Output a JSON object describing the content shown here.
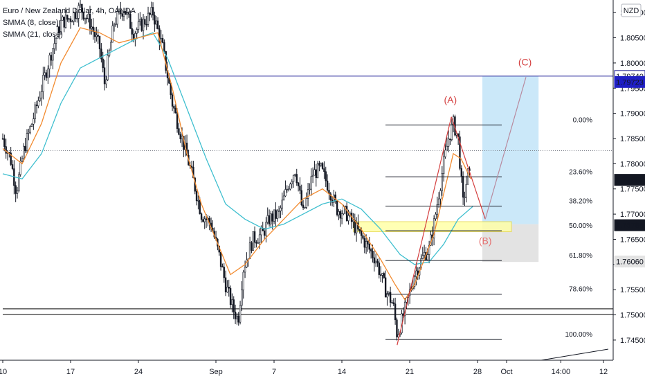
{
  "chart_data": {
    "type": "candlestick",
    "title": "Euro / New Zealand Dollar, 4h, OANDA",
    "indicators": [
      "SMMA (8, close)",
      "SMMA (21, close)"
    ],
    "currency": "NZD",
    "y_ticks": [
      1.745,
      1.75,
      1.755,
      1.76,
      1.765,
      1.77,
      1.775,
      1.78,
      1.785,
      1.79,
      1.795,
      1.8,
      1.805,
      1.81
    ],
    "y_tick_labels": [
      "1.74500",
      "1.75000",
      "1.75500",
      "1.76000",
      "1.76500",
      "1.77000",
      "1.77500",
      "1.78000",
      "1.78500",
      "1.79000",
      "1.79500",
      "1.80000",
      "1.80500",
      "1.81000"
    ],
    "ylim": [
      1.741,
      1.8125
    ],
    "x_labels": [
      {
        "label": "10",
        "day": 0
      },
      {
        "label": "17",
        "day": 7
      },
      {
        "label": "24",
        "day": 14
      },
      {
        "label": "Sep",
        "day": 22
      },
      {
        "label": "7",
        "day": 28
      },
      {
        "label": "14",
        "day": 35
      },
      {
        "label": "21",
        "day": 42
      },
      {
        "label": "28",
        "day": 49
      },
      {
        "label": "Oct",
        "day": 52
      },
      {
        "label": "14:00",
        "day": 57.6
      },
      {
        "label": "12",
        "day": 62
      }
    ],
    "close_path": [
      [
        0,
        1.785
      ],
      [
        0.8,
        1.781
      ],
      [
        1.4,
        1.7745
      ],
      [
        2.2,
        1.783
      ],
      [
        3.0,
        1.788
      ],
      [
        4.0,
        1.795
      ],
      [
        5.0,
        1.802
      ],
      [
        6.0,
        1.808
      ],
      [
        7.0,
        1.809
      ],
      [
        8.0,
        1.811
      ],
      [
        9.0,
        1.808
      ],
      [
        10.0,
        1.803
      ],
      [
        10.5,
        1.796
      ],
      [
        11.5,
        1.808
      ],
      [
        12.5,
        1.811
      ],
      [
        13.5,
        1.806
      ],
      [
        14.5,
        1.808
      ],
      [
        15.5,
        1.81
      ],
      [
        16.5,
        1.803
      ],
      [
        17.5,
        1.792
      ],
      [
        18.5,
        1.785
      ],
      [
        19.5,
        1.778
      ],
      [
        20.5,
        1.77
      ],
      [
        21.5,
        1.768
      ],
      [
        22.3,
        1.762
      ],
      [
        23.0,
        1.756
      ],
      [
        23.8,
        1.751
      ],
      [
        24.3,
        1.749
      ],
      [
        24.8,
        1.759
      ],
      [
        25.8,
        1.765
      ],
      [
        26.8,
        1.766
      ],
      [
        27.5,
        1.769
      ],
      [
        28.5,
        1.77
      ],
      [
        29.5,
        1.776
      ],
      [
        30.2,
        1.779
      ],
      [
        31.0,
        1.77
      ],
      [
        32.0,
        1.778
      ],
      [
        32.8,
        1.779
      ],
      [
        33.5,
        1.776
      ],
      [
        34.5,
        1.771
      ],
      [
        35.5,
        1.77
      ],
      [
        36.5,
        1.767
      ],
      [
        37.5,
        1.764
      ],
      [
        38.5,
        1.761
      ],
      [
        39.5,
        1.755
      ],
      [
        40.3,
        1.752
      ],
      [
        40.7,
        1.746
      ],
      [
        41.2,
        1.749
      ],
      [
        41.8,
        1.753
      ],
      [
        42.5,
        1.758
      ],
      [
        43.5,
        1.762
      ],
      [
        44.0,
        1.763
      ],
      [
        44.5,
        1.768
      ],
      [
        45.0,
        1.774
      ],
      [
        45.5,
        1.78
      ],
      [
        46.0,
        1.785
      ],
      [
        46.5,
        1.788
      ],
      [
        47.0,
        1.785
      ],
      [
        47.5,
        1.772
      ],
      [
        48.0,
        1.778
      ],
      [
        48.3,
        1.7768
      ]
    ],
    "smma_8": [
      [
        0,
        1.783
      ],
      [
        2.0,
        1.78
      ],
      [
        4.0,
        1.788
      ],
      [
        6.0,
        1.8
      ],
      [
        8.0,
        1.807
      ],
      [
        10.0,
        1.806
      ],
      [
        12.0,
        1.804
      ],
      [
        14.0,
        1.805
      ],
      [
        16.0,
        1.806
      ],
      [
        17.5,
        1.795
      ],
      [
        19.0,
        1.782
      ],
      [
        20.5,
        1.772
      ],
      [
        22.0,
        1.765
      ],
      [
        23.5,
        1.758
      ],
      [
        25.0,
        1.76
      ],
      [
        27.0,
        1.765
      ],
      [
        29.0,
        1.769
      ],
      [
        31.0,
        1.773
      ],
      [
        33.0,
        1.775
      ],
      [
        35.0,
        1.772
      ],
      [
        37.0,
        1.767
      ],
      [
        39.0,
        1.761
      ],
      [
        40.5,
        1.756
      ],
      [
        41.5,
        1.753
      ],
      [
        42.5,
        1.756
      ],
      [
        43.5,
        1.761
      ],
      [
        44.5,
        1.766
      ],
      [
        45.5,
        1.774
      ],
      [
        46.5,
        1.782
      ],
      [
        47.3,
        1.781
      ],
      [
        48.3,
        1.777
      ]
    ],
    "smma_21": [
      [
        0,
        1.778
      ],
      [
        2.0,
        1.777
      ],
      [
        4.0,
        1.782
      ],
      [
        6.0,
        1.792
      ],
      [
        8.0,
        1.799
      ],
      [
        10.0,
        1.801
      ],
      [
        12.0,
        1.803
      ],
      [
        14.0,
        1.805
      ],
      [
        15.5,
        1.806
      ],
      [
        17.0,
        1.801
      ],
      [
        19.0,
        1.791
      ],
      [
        21.0,
        1.781
      ],
      [
        23.0,
        1.772
      ],
      [
        25.0,
        1.769
      ],
      [
        27.0,
        1.767
      ],
      [
        29.0,
        1.768
      ],
      [
        31.0,
        1.77
      ],
      [
        33.0,
        1.772
      ],
      [
        35.0,
        1.773
      ],
      [
        37.0,
        1.771
      ],
      [
        39.0,
        1.767
      ],
      [
        41.0,
        1.762
      ],
      [
        42.5,
        1.76
      ],
      [
        44.0,
        1.7605
      ],
      [
        45.5,
        1.764
      ],
      [
        47.0,
        1.769
      ],
      [
        48.5,
        1.7715
      ]
    ],
    "horizontal_lines": [
      {
        "name": "resistance-line",
        "value": 1.7974,
        "color": "#2b2b9b",
        "start_day": 4.3
      },
      {
        "name": "current-price-line",
        "value": 1.7826,
        "color": "#787b86",
        "dotted": true,
        "start_day": 0
      },
      {
        "name": "support-line-upper",
        "value": 1.7512,
        "color": "#000000",
        "start_day": 0
      },
      {
        "name": "support-line-lower",
        "value": 1.7501,
        "color": "#000000",
        "start_day": 0
      }
    ],
    "fibonacci": {
      "start_day": 39.5,
      "end_day": 51.5,
      "levels": [
        {
          "label": "0.00%",
          "value": 1.7877
        },
        {
          "label": "23.60%",
          "value": 1.7774
        },
        {
          "label": "38.20%",
          "value": 1.7716
        },
        {
          "label": "50.00%",
          "value": 1.7667
        },
        {
          "label": "61.80%",
          "value": 1.7608
        },
        {
          "label": "78.60%",
          "value": 1.7541
        },
        {
          "label": "100.00%",
          "value": 1.7451
        }
      ]
    },
    "zones": [
      {
        "name": "target-zone",
        "y_top": 1.7974,
        "y_bottom": 1.768,
        "start_day": 49.5,
        "end_day": 55.3,
        "color": "#cbe8f9"
      },
      {
        "name": "stop-zone",
        "y_top": 1.768,
        "y_bottom": 1.7605,
        "start_day": 49.5,
        "end_day": 55.3,
        "color": "#e3e3e3"
      },
      {
        "name": "demand-zone",
        "y_top": 1.7685,
        "y_bottom": 1.7665,
        "start_day": 36.2,
        "end_day": 52.5,
        "color": "#ffffa8"
      }
    ],
    "wave_path": [
      {
        "label": "",
        "day": 40.7,
        "value": 1.744,
        "color": "#d43f3f"
      },
      {
        "label": "(A)",
        "day": 46.3,
        "value": 1.7893,
        "color": "#d43f3f"
      },
      {
        "label": "(B)",
        "day": 49.8,
        "value": 1.769,
        "color": "#d43f3f"
      },
      {
        "label": "(C)",
        "day": 54.0,
        "value": 1.7972,
        "color": "#b88a9e"
      }
    ],
    "wave_labels": [
      {
        "label": "(A)",
        "day": 46.2,
        "value": 1.792,
        "color": "#d43f3f"
      },
      {
        "label": "(B)",
        "day": 49.8,
        "value": 1.764,
        "color": "#e57373"
      },
      {
        "label": "(C)",
        "day": 53.9,
        "value": 1.7995,
        "color": "#d43f3f"
      }
    ],
    "trend_line": {
      "from": [
        54.0,
        1.7405
      ],
      "to": [
        62.5,
        1.7432
      ],
      "color": "#131722"
    },
    "price_labels": [
      {
        "label": "1.79740",
        "value": 1.7974,
        "bg": "#ffffff",
        "fg": "#1a1a8c",
        "border": "#1a1a8c"
      },
      {
        "label": "1.79723",
        "value": 1.79623,
        "bg": "#1f1fc4",
        "fg": "#ffffff",
        "border": "#1f1fc4"
      },
      {
        "label": "1.77682",
        "value": 1.7768,
        "bg": "#131722",
        "fg": "#ffffff",
        "border": "#131722"
      },
      {
        "label": "1.76785",
        "value": 1.7678,
        "bg": "#131722",
        "fg": "#ffffff",
        "border": "#131722"
      },
      {
        "label": "1.76060",
        "value": 1.7606,
        "bg": "#e3e3e3",
        "fg": "#131722",
        "border": "#e3e3e3"
      }
    ],
    "colors": {
      "candle": "#131722",
      "smma_8": "#f28b30",
      "smma_21": "#3fbfcf",
      "axis": "#131722"
    }
  }
}
